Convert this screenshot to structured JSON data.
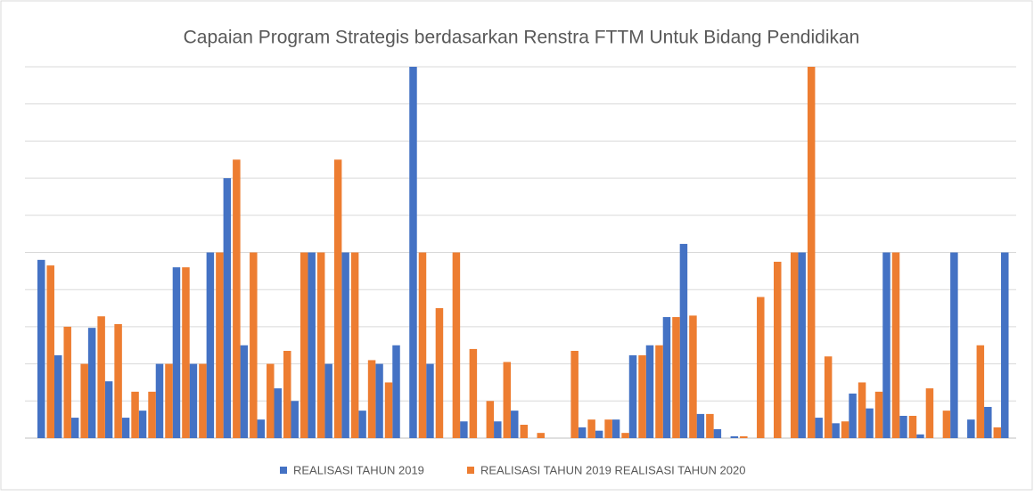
{
  "chart_data": {
    "type": "bar",
    "title": "Capaian Program Strategis berdasarkan Renstra FTTM Untuk Bidang Pendidikan",
    "categories": [
      null,
      null,
      null,
      null,
      null,
      null,
      null,
      null,
      null,
      null,
      null,
      null,
      null,
      null,
      null,
      null,
      null,
      null,
      null,
      null,
      null,
      null,
      null,
      null,
      null,
      null,
      null,
      null,
      null,
      null,
      null,
      null,
      null,
      null,
      null,
      null,
      null,
      null,
      null,
      null,
      null,
      null,
      null,
      null,
      null,
      null,
      null,
      null,
      null,
      null,
      null,
      null,
      null,
      null,
      null,
      null,
      null,
      null
    ],
    "series": [
      {
        "name": "REALISASI TAHUN 2019",
        "color": "#4472c4",
        "values": [
          4.8,
          2.23,
          0.55,
          2.97,
          1.53,
          0.55,
          0.74,
          2.0,
          4.6,
          2.0,
          5.0,
          7.0,
          2.5,
          0.5,
          1.34,
          1.0,
          5.0,
          2.0,
          5.0,
          0.74,
          2.0,
          2.5,
          10,
          2.0,
          0,
          0.45,
          0,
          0.45,
          0.74,
          0,
          0,
          0,
          0.29,
          0.2,
          0.5,
          2.23,
          2.5,
          3.26,
          5.23,
          0.65,
          0.24,
          0.05,
          0,
          0,
          0,
          5.0,
          0.55,
          0.4,
          1.2,
          0.8,
          5.0,
          0.6,
          0.1,
          0,
          5.0,
          0.5,
          0.84,
          5.0
        ]
      },
      {
        "name": "REALISASI TAHUN 2019 REALISASI TAHUN 2020",
        "color": "#ed7d31",
        "values": [
          4.65,
          3.0,
          2.0,
          3.28,
          3.07,
          1.25,
          1.25,
          2.0,
          4.6,
          2.0,
          5.0,
          7.5,
          5.0,
          2.0,
          2.35,
          5.0,
          5.0,
          7.5,
          5.0,
          2.1,
          1.5,
          0,
          5.0,
          3.5,
          5.0,
          2.4,
          1.0,
          2.05,
          0.36,
          0.14,
          0,
          2.35,
          0.5,
          0.5,
          0.14,
          2.23,
          2.5,
          3.26,
          3.3,
          0.65,
          0,
          0.05,
          3.8,
          4.75,
          5.0,
          10,
          2.2,
          0.45,
          1.5,
          1.25,
          5.0,
          0.6,
          1.34,
          0.74,
          0,
          2.5,
          0.29,
          0
        ]
      }
    ],
    "ylim": [
      0,
      10
    ],
    "yticks": [
      0,
      1,
      2,
      3,
      4,
      5,
      6,
      7,
      8,
      9,
      10
    ],
    "grid": true
  }
}
